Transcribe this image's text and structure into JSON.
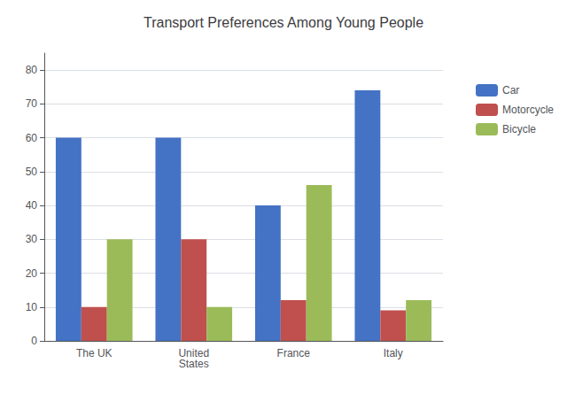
{
  "chart_data": {
    "type": "bar",
    "title": "Transport Preferences Among Young People",
    "categories": [
      "The UK",
      "United\nStates",
      "France",
      "Italy"
    ],
    "series": [
      {
        "name": "Car",
        "color": "#4472C4",
        "values": [
          60,
          60,
          40,
          74
        ]
      },
      {
        "name": "Motorcycle",
        "color": "#C0504D",
        "values": [
          10,
          30,
          12,
          9
        ]
      },
      {
        "name": "Bicycle",
        "color": "#9BBB59",
        "values": [
          30,
          10,
          46,
          12
        ]
      }
    ],
    "ylim": [
      0,
      85
    ],
    "yticks": [
      0,
      10,
      20,
      30,
      40,
      50,
      60,
      70,
      80
    ],
    "grid": true,
    "legend": "right"
  }
}
